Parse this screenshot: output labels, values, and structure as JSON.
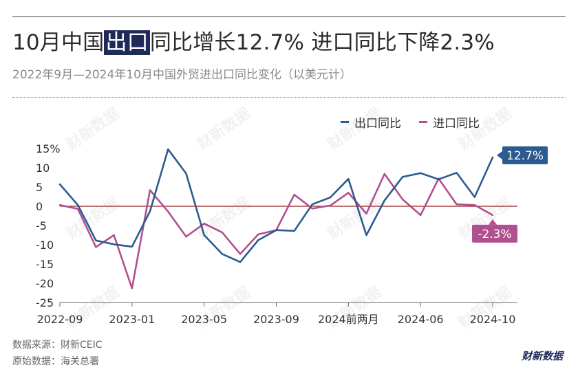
{
  "title": {
    "prefix": "10月中国",
    "highlight": "出口",
    "suffix": "同比增长12.7% 进口同比下降2.3%"
  },
  "subtitle": "2022年9月—2024年10月中国外贸进出口同比变化（以美元计）",
  "footer": {
    "source": "数据来源：财新CEIC",
    "original": "原始数据：海关总署"
  },
  "logo": "财新数据",
  "watermark": "财新数据",
  "colors": {
    "export": "#2c5b8f",
    "import": "#b0508f",
    "zero_line": "#9b1c1c"
  },
  "chart_data": {
    "type": "line",
    "title": "10月中国出口同比增长12.7% 进口同比下降2.3%",
    "ylabel": "%",
    "ylim": [
      -25,
      15
    ],
    "y_ticks": [
      "15%",
      "10",
      "5",
      "0",
      "-5",
      "-10",
      "-15",
      "-20",
      "-25"
    ],
    "y_tick_values": [
      15,
      10,
      5,
      0,
      -5,
      -10,
      -15,
      -20,
      -25
    ],
    "x_tick_labels": [
      "2022-09",
      "2023-01",
      "2023-05",
      "2023-09",
      "2024前两月",
      "2024-06",
      "2024-10"
    ],
    "x_tick_indices": [
      0,
      4,
      8,
      12,
      16,
      20,
      24
    ],
    "x": [
      "2022-09",
      "2022-10",
      "2022-11",
      "2022-12",
      "2023-01",
      "2023-02",
      "2023-03",
      "2023-04",
      "2023-05",
      "2023-06",
      "2023-07",
      "2023-08",
      "2023-09",
      "2023-10",
      "2023-11",
      "2023-12",
      "2024前两月",
      "2024-03",
      "2024-04",
      "2024-05",
      "2024-06",
      "2024-07",
      "2024-08",
      "2024-09",
      "2024-10"
    ],
    "series": [
      {
        "name": "出口同比",
        "values": [
          5.7,
          0.3,
          -8.9,
          -9.9,
          -10.5,
          -1.3,
          14.8,
          8.5,
          -7.5,
          -12.4,
          -14.5,
          -8.8,
          -6.2,
          -6.4,
          0.5,
          2.3,
          7.1,
          -7.5,
          1.5,
          7.6,
          8.6,
          7.0,
          8.7,
          2.4,
          12.7
        ]
      },
      {
        "name": "进口同比",
        "values": [
          0.3,
          -0.7,
          -10.6,
          -7.5,
          -21.3,
          4.2,
          -1.4,
          -7.9,
          -4.5,
          -6.8,
          -12.4,
          -7.3,
          -6.2,
          3.0,
          -0.6,
          0.2,
          3.5,
          -1.9,
          8.4,
          1.8,
          -2.3,
          7.2,
          0.5,
          0.3,
          -2.3
        ]
      }
    ],
    "end_labels": [
      "12.7%",
      "-2.3%"
    ],
    "grid": false,
    "legend_position": "top-right"
  }
}
